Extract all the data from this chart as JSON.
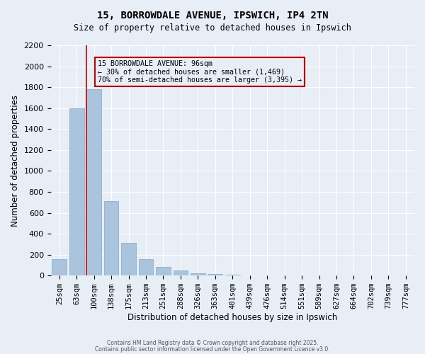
{
  "title": "15, BORROWDALE AVENUE, IPSWICH, IP4 2TN",
  "subtitle": "Size of property relative to detached houses in Ipswich",
  "xlabel": "Distribution of detached houses by size in Ipswich",
  "ylabel": "Number of detached properties",
  "bar_labels": [
    "25sqm",
    "63sqm",
    "100sqm",
    "138sqm",
    "175sqm",
    "213sqm",
    "251sqm",
    "288sqm",
    "326sqm",
    "363sqm",
    "401sqm",
    "439sqm",
    "476sqm",
    "514sqm",
    "551sqm",
    "589sqm",
    "627sqm",
    "664sqm",
    "702sqm",
    "739sqm",
    "777sqm"
  ],
  "bar_values": [
    160,
    1600,
    1780,
    710,
    310,
    160,
    80,
    50,
    25,
    15,
    5,
    2,
    0,
    0,
    0,
    0,
    0,
    0,
    0,
    0,
    0
  ],
  "ylim": [
    0,
    2200
  ],
  "yticks": [
    0,
    200,
    400,
    600,
    800,
    1000,
    1200,
    1400,
    1600,
    1800,
    2000,
    2200
  ],
  "bar_color": "#aac4de",
  "bar_edgecolor": "#7fa8c9",
  "vline_index": 2,
  "vline_color": "#cc0000",
  "annotation_text": "15 BORROWDALE AVENUE: 96sqm\n← 30% of detached houses are smaller (1,469)\n70% of semi-detached houses are larger (3,395) →",
  "annotation_box_color": "#cc0000",
  "bg_color": "#e8eef5",
  "grid_color": "#ffffff",
  "footer1": "Contains HM Land Registry data © Crown copyright and database right 2025.",
  "footer2": "Contains public sector information licensed under the Open Government Licence v3.0."
}
